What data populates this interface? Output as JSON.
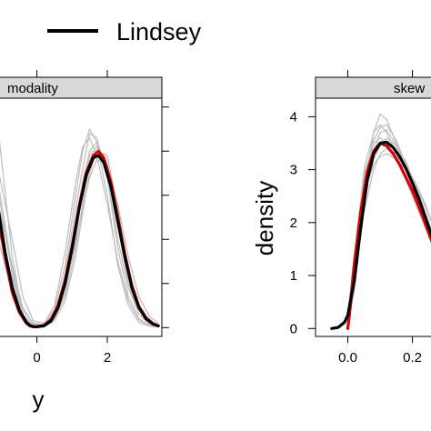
{
  "legend": {
    "label": "Lindsey",
    "placement": "top"
  },
  "chart_data": [
    {
      "type": "line",
      "panel": "modality",
      "xlabel": "y",
      "ylabel": "",
      "xlim": [
        -1.1,
        3.55
      ],
      "ylim": [
        -0.02,
        0.52
      ],
      "xticks": [
        0,
        2
      ],
      "xtick_labels": [
        "0",
        "2"
      ],
      "yticks": [
        0,
        0.1,
        0.2,
        0.3,
        0.4,
        0.5
      ],
      "series": [
        {
          "name": "Lindsey",
          "color": "#000000",
          "x": [
            -1.1,
            -0.9,
            -0.7,
            -0.5,
            -0.3,
            -0.2,
            -0.1,
            0.0,
            0.2,
            0.4,
            0.6,
            0.8,
            1.0,
            1.2,
            1.4,
            1.6,
            1.75,
            1.9,
            2.1,
            2.3,
            2.5,
            2.7,
            2.9,
            3.1,
            3.3,
            3.45
          ],
          "y": [
            0.27,
            0.17,
            0.09,
            0.04,
            0.012,
            0.005,
            0.002,
            0.002,
            0.004,
            0.015,
            0.045,
            0.1,
            0.18,
            0.27,
            0.345,
            0.385,
            0.39,
            0.375,
            0.32,
            0.24,
            0.16,
            0.09,
            0.045,
            0.02,
            0.008,
            0.004
          ]
        },
        {
          "color": "#dd0000",
          "x": [
            -1.1,
            -0.9,
            -0.7,
            -0.5,
            -0.3,
            -0.2,
            -0.1,
            0.0,
            0.2,
            0.4,
            0.6,
            0.8,
            1.0,
            1.2,
            1.4,
            1.6,
            1.75,
            1.9,
            2.1,
            2.3,
            2.5,
            2.7,
            2.9,
            3.1,
            3.3,
            3.45
          ],
          "y": [
            0.25,
            0.16,
            0.08,
            0.035,
            0.01,
            0.004,
            0.002,
            0.002,
            0.005,
            0.018,
            0.05,
            0.105,
            0.185,
            0.275,
            0.35,
            0.39,
            0.4,
            0.385,
            0.33,
            0.25,
            0.165,
            0.095,
            0.048,
            0.022,
            0.009,
            0.004
          ]
        }
      ],
      "replicates": [
        {
          "x": [
            -1.1,
            -0.7,
            -0.4,
            -0.1,
            0.2,
            0.5,
            0.8,
            1.1,
            1.3,
            1.5,
            1.7,
            2.0,
            2.3,
            2.6,
            2.9,
            3.2,
            3.45
          ],
          "y": [
            0.45,
            0.16,
            0.03,
            0.003,
            0.004,
            0.03,
            0.12,
            0.27,
            0.36,
            0.44,
            0.43,
            0.34,
            0.18,
            0.07,
            0.02,
            0.005,
            0.002
          ]
        },
        {
          "x": [
            -1.1,
            -0.7,
            -0.4,
            -0.1,
            0.2,
            0.5,
            0.8,
            1.1,
            1.3,
            1.5,
            1.7,
            2.0,
            2.3,
            2.6,
            2.9,
            3.2,
            3.45
          ],
          "y": [
            0.31,
            0.12,
            0.025,
            0.002,
            0.003,
            0.02,
            0.08,
            0.2,
            0.31,
            0.39,
            0.41,
            0.36,
            0.23,
            0.1,
            0.03,
            0.008,
            0.002
          ]
        },
        {
          "x": [
            -1.1,
            -0.7,
            -0.4,
            -0.1,
            0.2,
            0.5,
            0.8,
            1.1,
            1.3,
            1.5,
            1.7,
            2.0,
            2.3,
            2.6,
            2.9,
            3.2,
            3.45
          ],
          "y": [
            0.2,
            0.08,
            0.02,
            0.003,
            0.006,
            0.04,
            0.14,
            0.3,
            0.4,
            0.45,
            0.42,
            0.3,
            0.14,
            0.05,
            0.012,
            0.003,
            0.001
          ]
        },
        {
          "x": [
            -1.1,
            -0.7,
            -0.4,
            -0.1,
            0.2,
            0.5,
            0.8,
            1.1,
            1.3,
            1.5,
            1.7,
            2.0,
            2.3,
            2.6,
            2.9,
            3.2,
            3.45
          ],
          "y": [
            0.36,
            0.2,
            0.07,
            0.015,
            0.01,
            0.03,
            0.09,
            0.19,
            0.27,
            0.34,
            0.38,
            0.37,
            0.28,
            0.16,
            0.07,
            0.025,
            0.01
          ]
        },
        {
          "x": [
            -1.1,
            -0.7,
            -0.4,
            -0.1,
            0.2,
            0.5,
            0.8,
            1.1,
            1.3,
            1.5,
            1.7,
            2.0,
            2.3,
            2.6,
            2.9,
            3.2,
            3.45
          ],
          "y": [
            0.24,
            0.1,
            0.03,
            0.005,
            0.003,
            0.015,
            0.06,
            0.16,
            0.26,
            0.35,
            0.4,
            0.39,
            0.27,
            0.13,
            0.05,
            0.015,
            0.005
          ]
        },
        {
          "x": [
            -1.1,
            -0.7,
            -0.4,
            -0.1,
            0.2,
            0.5,
            0.8,
            1.1,
            1.3,
            1.5,
            1.7,
            2.0,
            2.3,
            2.6,
            2.9,
            3.2,
            3.45
          ],
          "y": [
            0.28,
            0.14,
            0.045,
            0.008,
            0.004,
            0.025,
            0.1,
            0.24,
            0.33,
            0.4,
            0.42,
            0.34,
            0.2,
            0.09,
            0.03,
            0.008,
            0.003
          ]
        },
        {
          "x": [
            -1.1,
            -0.7,
            -0.4,
            -0.1,
            0.2,
            0.5,
            0.8,
            1.1,
            1.3,
            1.5,
            1.7,
            2.0,
            2.3,
            2.6,
            2.9,
            3.2,
            3.45
          ],
          "y": [
            0.33,
            0.13,
            0.03,
            0.004,
            0.008,
            0.05,
            0.17,
            0.33,
            0.41,
            0.43,
            0.39,
            0.28,
            0.15,
            0.06,
            0.018,
            0.004,
            0.001
          ]
        },
        {
          "x": [
            -1.1,
            -0.7,
            -0.4,
            -0.1,
            0.2,
            0.5,
            0.8,
            1.1,
            1.3,
            1.5,
            1.7,
            2.0,
            2.3,
            2.6,
            2.9,
            3.2,
            3.45
          ],
          "y": [
            0.22,
            0.11,
            0.04,
            0.01,
            0.006,
            0.02,
            0.07,
            0.18,
            0.28,
            0.37,
            0.4,
            0.37,
            0.25,
            0.12,
            0.045,
            0.014,
            0.004
          ]
        }
      ]
    },
    {
      "type": "line",
      "panel": "skew",
      "xlabel": "",
      "ylabel": "density",
      "xlim": [
        -0.1,
        0.28
      ],
      "ylim": [
        -0.15,
        4.35
      ],
      "xticks": [
        0.0,
        0.2
      ],
      "xtick_labels": [
        "0.0",
        "0.2"
      ],
      "yticks": [
        0,
        1,
        2,
        3,
        4
      ],
      "ytick_labels": [
        "0",
        "1",
        "2",
        "3",
        "4"
      ],
      "series": [
        {
          "name": "Lindsey",
          "color": "#000000",
          "x": [
            -0.05,
            -0.03,
            -0.01,
            0.0,
            0.02,
            0.04,
            0.06,
            0.08,
            0.1,
            0.12,
            0.14,
            0.16,
            0.18,
            0.2,
            0.22,
            0.24,
            0.26,
            0.28
          ],
          "y": [
            0.0,
            0.02,
            0.12,
            0.25,
            0.9,
            1.9,
            2.8,
            3.3,
            3.5,
            3.52,
            3.42,
            3.25,
            3.02,
            2.75,
            2.45,
            2.1,
            1.75,
            1.4
          ]
        },
        {
          "color": "#dd0000",
          "x": [
            0.0,
            0.005,
            0.02,
            0.04,
            0.06,
            0.08,
            0.1,
            0.12,
            0.14,
            0.16,
            0.18,
            0.2,
            0.22,
            0.24,
            0.26,
            0.28
          ],
          "y": [
            0.0,
            0.25,
            1.2,
            2.2,
            2.95,
            3.35,
            3.5,
            3.45,
            3.3,
            3.1,
            2.85,
            2.6,
            2.3,
            1.98,
            1.65,
            1.32
          ]
        }
      ],
      "replicates": [
        {
          "x": [
            0.0,
            0.02,
            0.05,
            0.08,
            0.1,
            0.12,
            0.15,
            0.18,
            0.21,
            0.24,
            0.28
          ],
          "y": [
            0.1,
            0.9,
            2.6,
            3.7,
            4.05,
            3.95,
            3.5,
            3.0,
            2.5,
            2.0,
            1.3
          ]
        },
        {
          "x": [
            0.0,
            0.02,
            0.05,
            0.08,
            0.1,
            0.12,
            0.15,
            0.18,
            0.21,
            0.24,
            0.28
          ],
          "y": [
            0.15,
            1.1,
            2.8,
            3.55,
            3.8,
            3.85,
            3.55,
            3.1,
            2.6,
            2.1,
            1.45
          ]
        },
        {
          "x": [
            0.0,
            0.02,
            0.05,
            0.08,
            0.1,
            0.12,
            0.15,
            0.18,
            0.21,
            0.24,
            0.28
          ],
          "y": [
            0.2,
            1.0,
            2.4,
            3.2,
            3.45,
            3.6,
            3.45,
            3.15,
            2.7,
            2.2,
            1.5
          ]
        },
        {
          "x": [
            0.0,
            0.02,
            0.05,
            0.08,
            0.1,
            0.12,
            0.15,
            0.18,
            0.21,
            0.24,
            0.28
          ],
          "y": [
            0.12,
            0.8,
            2.2,
            3.0,
            3.3,
            3.4,
            3.3,
            3.05,
            2.75,
            2.35,
            1.65
          ]
        },
        {
          "x": [
            0.0,
            0.02,
            0.05,
            0.08,
            0.1,
            0.12,
            0.15,
            0.18,
            0.21,
            0.24,
            0.28
          ],
          "y": [
            0.25,
            1.3,
            3.0,
            3.7,
            3.85,
            3.7,
            3.3,
            2.85,
            2.4,
            1.95,
            1.35
          ]
        },
        {
          "x": [
            0.0,
            0.02,
            0.05,
            0.08,
            0.1,
            0.12,
            0.15,
            0.18,
            0.21,
            0.24,
            0.28
          ],
          "y": [
            0.08,
            0.7,
            2.3,
            3.35,
            3.7,
            3.75,
            3.45,
            3.0,
            2.55,
            2.1,
            1.5
          ]
        },
        {
          "x": [
            0.0,
            0.02,
            0.05,
            0.08,
            0.1,
            0.12,
            0.15,
            0.18,
            0.21,
            0.24,
            0.28
          ],
          "y": [
            0.18,
            1.0,
            2.5,
            3.1,
            3.25,
            3.3,
            3.2,
            3.0,
            2.7,
            2.3,
            1.7
          ]
        },
        {
          "x": [
            0.0,
            0.02,
            0.05,
            0.08,
            0.1,
            0.12,
            0.15,
            0.18,
            0.21,
            0.24,
            0.28
          ],
          "y": [
            0.3,
            1.4,
            2.9,
            3.5,
            3.6,
            3.5,
            3.2,
            2.8,
            2.35,
            1.9,
            1.3
          ]
        }
      ]
    }
  ]
}
